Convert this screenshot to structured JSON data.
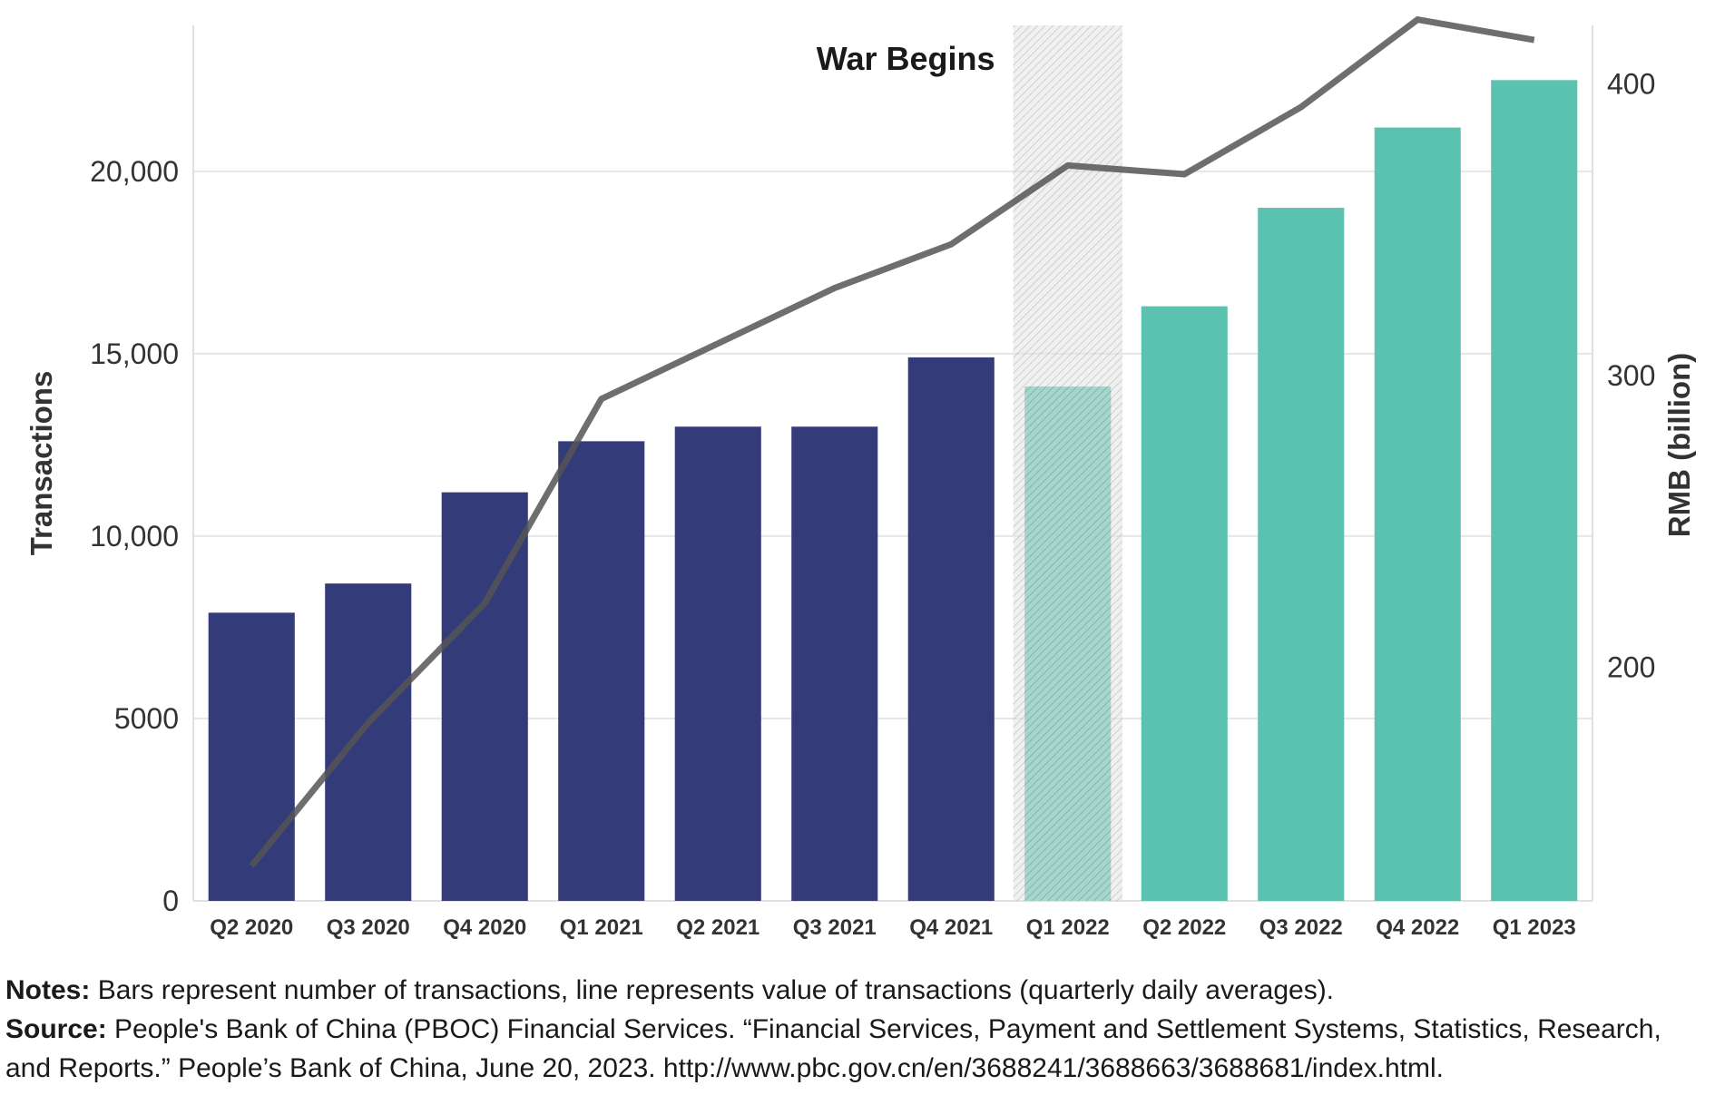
{
  "chart_data": {
    "type": "bar",
    "categories": [
      "Q2 2020",
      "Q3 2020",
      "Q4 2020",
      "Q1 2021",
      "Q2 2021",
      "Q3 2021",
      "Q4 2021",
      "Q1 2022",
      "Q2 2022",
      "Q3 2022",
      "Q4 2022",
      "Q1 2023"
    ],
    "bar_series": {
      "values": [
        7900,
        8700,
        11200,
        12600,
        13000,
        13000,
        14900,
        14100,
        16300,
        19000,
        21200,
        22500
      ],
      "colors": [
        "#333b78",
        "#333b78",
        "#333b78",
        "#333b78",
        "#333b78",
        "#333b78",
        "#333b78",
        "#5cc2b0",
        "#5cc2b0",
        "#5cc2b0",
        "#5cc2b0",
        "#5cc2b0"
      ]
    },
    "line_series": {
      "values": [
        132,
        181,
        222,
        292,
        311,
        330,
        345,
        372,
        369,
        392,
        422,
        415
      ],
      "color": "#555555"
    },
    "y_left": {
      "label": "Transactions",
      "range": [
        0,
        24000
      ],
      "ticks": [
        0,
        5000,
        10000,
        15000,
        20000
      ],
      "tick_labels": [
        "0",
        "5000",
        "10,000",
        "15,000",
        "20,000"
      ]
    },
    "y_right": {
      "label": "RMB (billion)",
      "range": [
        120,
        420
      ],
      "ticks": [
        200,
        300,
        400
      ],
      "tick_labels": [
        "200",
        "300",
        "400"
      ]
    },
    "annotation": {
      "label": "War Begins",
      "category": "Q1 2022"
    },
    "grid": true
  },
  "notes": {
    "notes_label": "Notes:",
    "notes_text": "Bars represent number of transactions, line represents value of transactions (quarterly daily averages).",
    "source_label": "Source:",
    "source_text": "People's Bank of China (PBOC) Financial Services. “Financial Services, Payment and Settlement Systems, Statistics, Research, and Reports.” People’s Bank of China, June 20, 2023. http://www.pbc.gov.cn/en/3688241/3688663/3688681/index.html."
  }
}
